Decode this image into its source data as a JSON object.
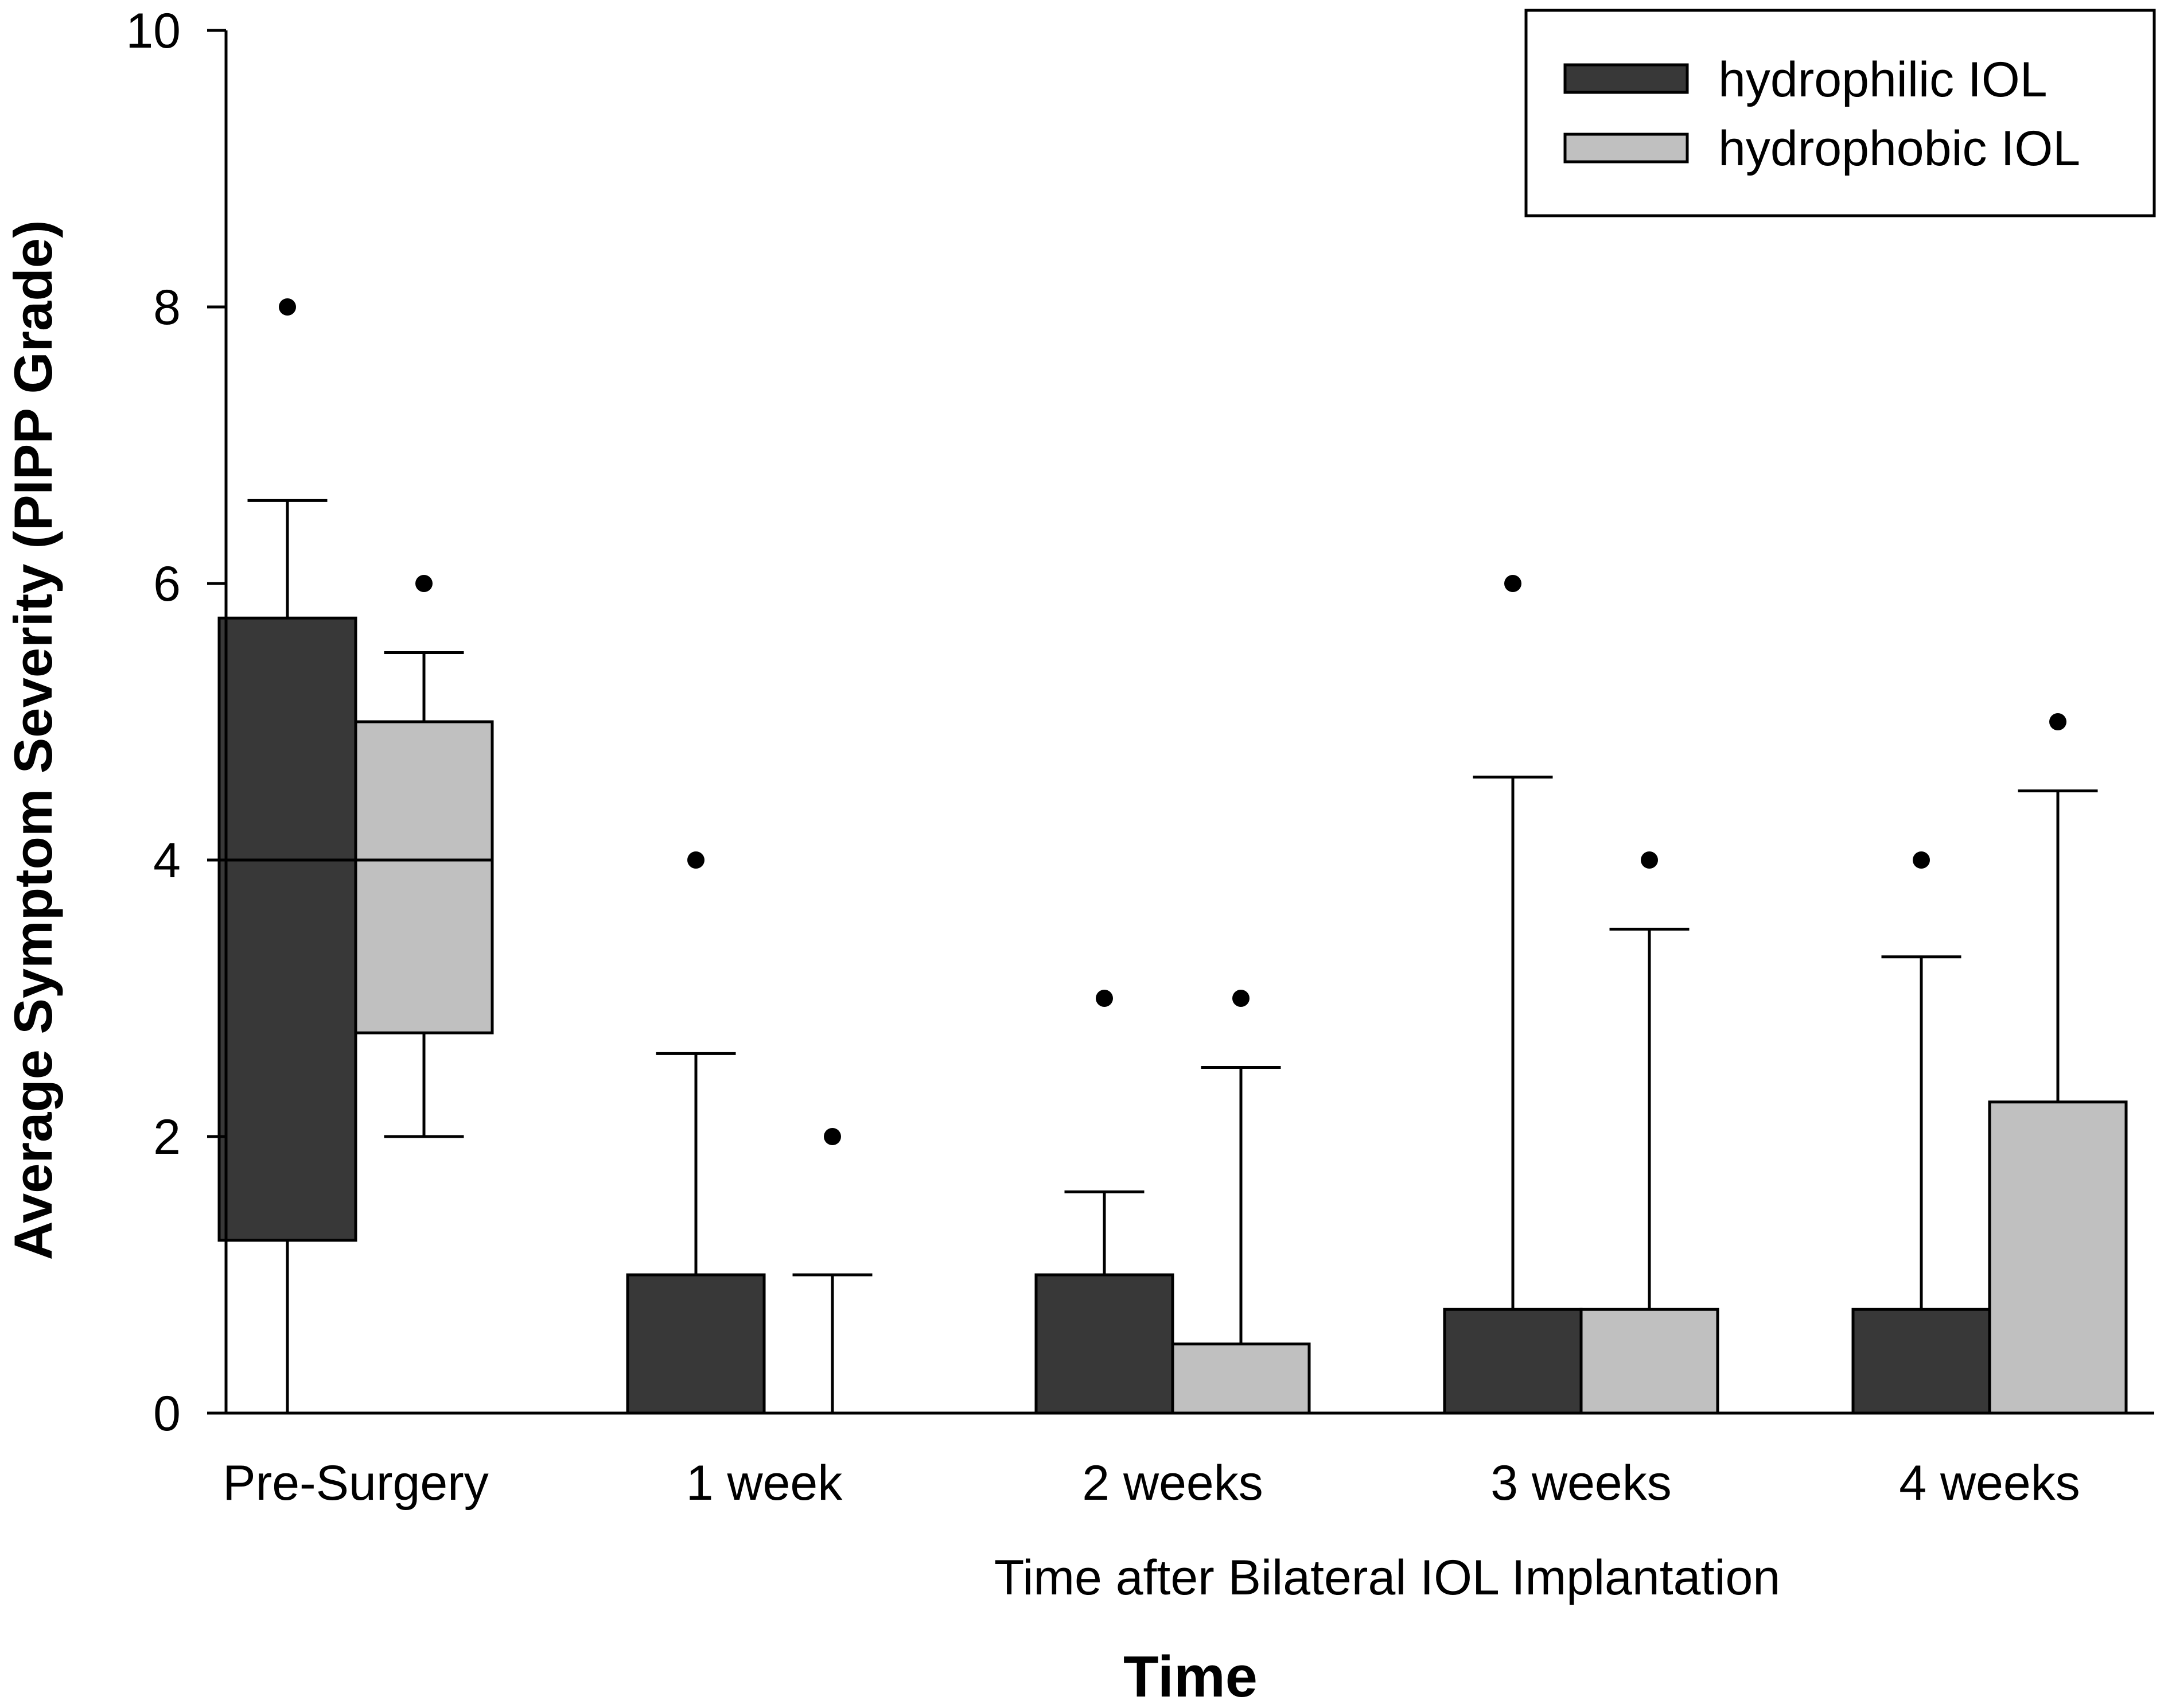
{
  "chart_data": {
    "type": "boxplot",
    "title": "",
    "xlabel": "Time after Bilateral IOL Implantation",
    "xtitle": "Time",
    "ylabel": "Average Symptom Severity (PIPP Grade)",
    "ylim": [
      0,
      10
    ],
    "yticks": [
      0,
      2,
      4,
      6,
      8,
      10
    ],
    "grid": false,
    "legend_position": "top-right",
    "categories": [
      "Pre-Surgery",
      "1 week",
      "2 weeks",
      "3 weeks",
      "4 weeks"
    ],
    "series": [
      {
        "name": "hydrophilic IOL",
        "color": "#383838",
        "boxes": [
          {
            "whisker_low": 0,
            "q1": 1.25,
            "median": 4,
            "q3": 5.75,
            "whisker_high": 6.6,
            "outliers": [
              8
            ]
          },
          {
            "whisker_low": 0,
            "q1": 0,
            "median": 0,
            "q3": 1,
            "whisker_high": 2.6,
            "outliers": [
              4
            ]
          },
          {
            "whisker_low": 0,
            "q1": 0,
            "median": 0,
            "q3": 1,
            "whisker_high": 1.6,
            "outliers": [
              3
            ]
          },
          {
            "whisker_low": 0,
            "q1": 0,
            "median": 0,
            "q3": 0.75,
            "whisker_high": 4.6,
            "outliers": [
              6
            ]
          },
          {
            "whisker_low": 0,
            "q1": 0,
            "median": 0,
            "q3": 0.75,
            "whisker_high": 3.3,
            "outliers": [
              4
            ]
          }
        ]
      },
      {
        "name": "hydrophobic IOL",
        "color": "#c0c0c0",
        "boxes": [
          {
            "whisker_low": 2,
            "q1": 2.75,
            "median": 4,
            "q3": 5,
            "whisker_high": 5.5,
            "outliers": [
              6
            ]
          },
          {
            "whisker_low": 0,
            "q1": 0,
            "median": 0,
            "q3": 0,
            "whisker_high": 1,
            "outliers": [
              2
            ]
          },
          {
            "whisker_low": 0,
            "q1": 0,
            "median": 0,
            "q3": 0.5,
            "whisker_high": 2.5,
            "outliers": [
              3
            ]
          },
          {
            "whisker_low": 0,
            "q1": 0,
            "median": 0,
            "q3": 0.75,
            "whisker_high": 3.5,
            "outliers": [
              4
            ]
          },
          {
            "whisker_low": 0,
            "q1": 0,
            "median": 0,
            "q3": 2.25,
            "whisker_high": 4.5,
            "outliers": [
              5
            ]
          }
        ]
      }
    ]
  }
}
